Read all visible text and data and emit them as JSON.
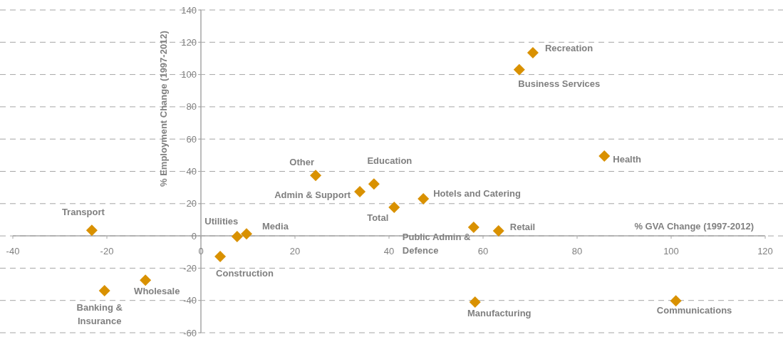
{
  "chart_data": {
    "type": "scatter",
    "xlabel": "% GVA Change (1997-2012)",
    "ylabel": "% Employment Change (1997-2012)",
    "x": [
      -23.2,
      -20.5,
      -11.8,
      4.1,
      7.7,
      9.7,
      24.4,
      33.8,
      36.8,
      41.1,
      47.3,
      58,
      63.3,
      58.3,
      67.7,
      70.6,
      85.8,
      101
    ],
    "values": [
      3.5,
      -34,
      -27.4,
      -12.8,
      -0.4,
      1.3,
      37.5,
      27.4,
      32.2,
      17.7,
      23,
      5.3,
      3.1,
      -41,
      103,
      113.5,
      49.5,
      -40.2
    ],
    "color": "#d99100",
    "marker": "diamond",
    "grid": "y",
    "xlim": [
      -40,
      120
    ],
    "xticks": [
      -40,
      -20,
      0,
      20,
      40,
      60,
      80,
      100,
      120
    ],
    "ylim": [
      -60,
      140
    ],
    "yticks": [
      -60,
      -40,
      -20,
      0,
      20,
      40,
      60,
      80,
      100,
      120,
      140
    ],
    "annotations": [
      {
        "text": "Transport",
        "x": -23.2,
        "y": 3.5
      },
      {
        "text": "Banking & Insurance",
        "x": -20.5,
        "y": -34
      },
      {
        "text": "Wholesale",
        "x": -11.8,
        "y": -27.4
      },
      {
        "text": "Construction",
        "x": 4.1,
        "y": -12.8
      },
      {
        "text": "Utilities",
        "x": 7.7,
        "y": -0.4
      },
      {
        "text": "Media",
        "x": 9.7,
        "y": 1.3
      },
      {
        "text": "Other",
        "x": 24.4,
        "y": 37.5
      },
      {
        "text": "Admin & Support",
        "x": 33.8,
        "y": 27.4
      },
      {
        "text": "Education",
        "x": 36.8,
        "y": 32.2
      },
      {
        "text": "Total",
        "x": 41.1,
        "y": 17.7
      },
      {
        "text": "Hotels and Catering",
        "x": 47.3,
        "y": 23
      },
      {
        "text": "Public Admin & Defence",
        "x": 58,
        "y": 5.3
      },
      {
        "text": "Retail",
        "x": 63.3,
        "y": 3.1
      },
      {
        "text": "Manufacturing",
        "x": 58.3,
        "y": -41
      },
      {
        "text": "Business Services",
        "x": 67.7,
        "y": 103
      },
      {
        "text": "Recreation",
        "x": 70.6,
        "y": 113.5
      },
      {
        "text": "Health",
        "x": 85.8,
        "y": 49.5
      },
      {
        "text": "Communications",
        "x": 101,
        "y": -40.2
      }
    ]
  }
}
